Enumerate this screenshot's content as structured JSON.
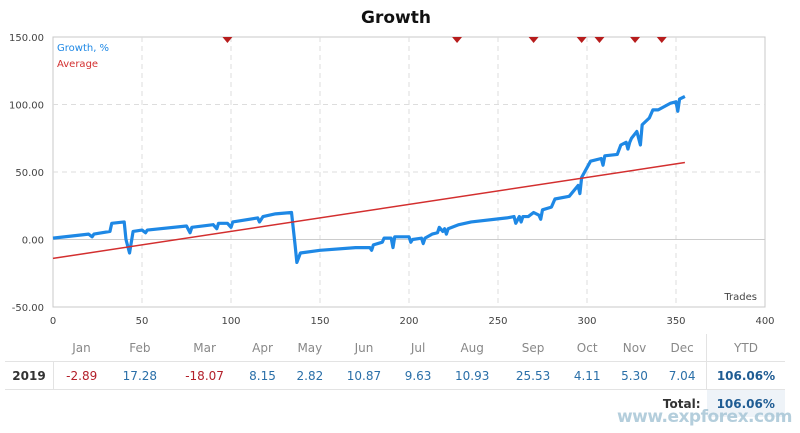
{
  "chart_data": {
    "type": "line",
    "title": "Growth",
    "xlabel": "Trades",
    "ylabel": "",
    "xlim": [
      0,
      400
    ],
    "ylim": [
      -50,
      150
    ],
    "xticks": [
      "0",
      "50",
      "100",
      "150",
      "200",
      "250",
      "300",
      "350",
      "400"
    ],
    "yticks": [
      "150.00",
      "100.00",
      "50.00",
      "0.00",
      "-50.00"
    ],
    "grid": true,
    "legend_position": "top-left",
    "series": [
      {
        "name": "Growth, %",
        "color": "#1e88e5",
        "points": [
          [
            0,
            1
          ],
          [
            20,
            4
          ],
          [
            22,
            2
          ],
          [
            23,
            4
          ],
          [
            32,
            6
          ],
          [
            33,
            12
          ],
          [
            40,
            13
          ],
          [
            41,
            0
          ],
          [
            43,
            -10
          ],
          [
            45,
            6
          ],
          [
            50,
            7
          ],
          [
            52,
            5
          ],
          [
            53,
            7
          ],
          [
            75,
            10
          ],
          [
            77,
            5
          ],
          [
            78,
            9
          ],
          [
            90,
            11
          ],
          [
            92,
            8
          ],
          [
            93,
            12
          ],
          [
            98,
            12
          ],
          [
            100,
            9
          ],
          [
            101,
            13
          ],
          [
            115,
            16
          ],
          [
            116,
            13
          ],
          [
            118,
            17
          ],
          [
            125,
            19
          ],
          [
            134,
            20
          ],
          [
            136,
            -4
          ],
          [
            137,
            -17
          ],
          [
            139,
            -10
          ],
          [
            150,
            -8
          ],
          [
            170,
            -6
          ],
          [
            178,
            -6
          ],
          [
            179,
            -8
          ],
          [
            180,
            -4
          ],
          [
            185,
            -2
          ],
          [
            186,
            1
          ],
          [
            190,
            1
          ],
          [
            191,
            -6
          ],
          [
            192,
            2
          ],
          [
            200,
            2
          ],
          [
            201,
            -2
          ],
          [
            202,
            0
          ],
          [
            207,
            1
          ],
          [
            208,
            -3
          ],
          [
            209,
            1
          ],
          [
            213,
            4
          ],
          [
            216,
            5
          ],
          [
            217,
            9
          ],
          [
            219,
            6
          ],
          [
            220,
            8
          ],
          [
            221,
            4
          ],
          [
            222,
            8
          ],
          [
            228,
            11
          ],
          [
            235,
            13
          ],
          [
            255,
            16
          ],
          [
            259,
            17
          ],
          [
            260,
            12
          ],
          [
            262,
            17
          ],
          [
            263,
            13
          ],
          [
            264,
            17
          ],
          [
            267,
            17
          ],
          [
            270,
            20
          ],
          [
            273,
            18
          ],
          [
            274,
            15
          ],
          [
            275,
            22
          ],
          [
            280,
            24
          ],
          [
            282,
            30
          ],
          [
            290,
            32
          ],
          [
            295,
            40
          ],
          [
            296,
            34
          ],
          [
            297,
            46
          ],
          [
            302,
            58
          ],
          [
            308,
            60
          ],
          [
            309,
            55
          ],
          [
            310,
            62
          ],
          [
            317,
            63
          ],
          [
            319,
            70
          ],
          [
            322,
            72
          ],
          [
            323,
            67
          ],
          [
            324,
            72
          ],
          [
            325,
            75
          ],
          [
            328,
            80
          ],
          [
            330,
            70
          ],
          [
            331,
            85
          ],
          [
            335,
            90
          ],
          [
            337,
            96
          ],
          [
            340,
            96
          ],
          [
            347,
            101
          ],
          [
            350,
            102
          ],
          [
            351,
            95
          ],
          [
            352,
            104
          ],
          [
            355,
            106
          ]
        ]
      },
      {
        "name": "Average",
        "color": "#d32f2f",
        "points": [
          [
            0,
            -14
          ],
          [
            355,
            57
          ]
        ]
      }
    ],
    "markers": [
      98,
      227,
      270,
      297,
      307,
      327,
      342
    ]
  },
  "table": {
    "months": [
      "Jan",
      "Feb",
      "Mar",
      "Apr",
      "May",
      "Jun",
      "Jul",
      "Aug",
      "Sep",
      "Oct",
      "Nov",
      "Dec"
    ],
    "ytd_label": "YTD",
    "rows": [
      {
        "year": "2019",
        "values": [
          "-2.89",
          "17.28",
          "-18.07",
          "8.15",
          "2.82",
          "10.87",
          "9.63",
          "10.93",
          "25.53",
          "4.11",
          "5.30",
          "7.04"
        ],
        "ytd": "106.06%"
      }
    ],
    "total_label": "Total:",
    "total_value": "106.06%"
  },
  "watermark": "www.expforex.com"
}
